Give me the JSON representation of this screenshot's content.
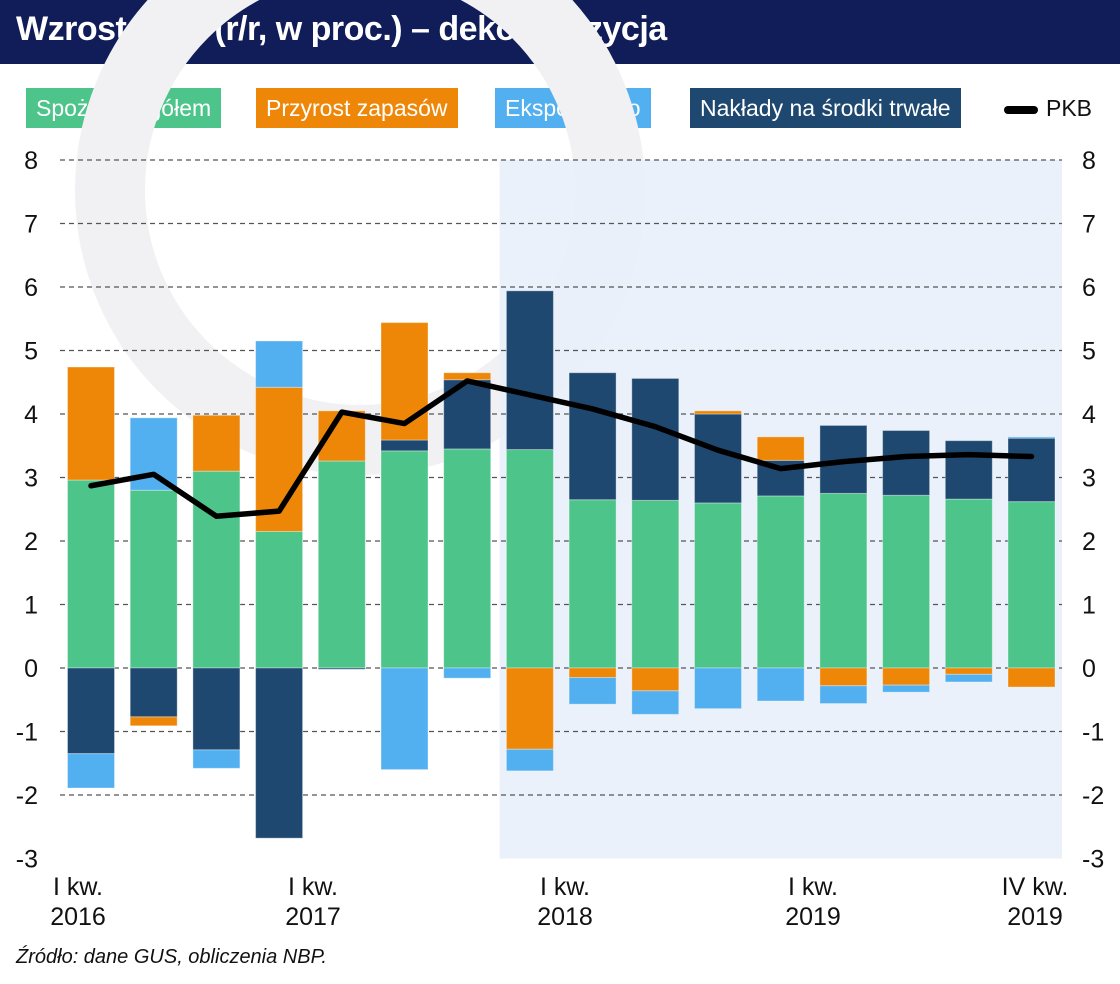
{
  "title": "Wzrost PKB (r/r, w proc.) – dekompozycja",
  "source": "Źródło: dane GUS, obliczenia NBP.",
  "colors": {
    "title_bar": "#111d58",
    "consumption": "#4cc48a",
    "inventories": "#ee8708",
    "net_exports": "#52aff0",
    "investment": "#1e4870",
    "gdp": "#000000",
    "forecast_shade": "#e8f0fa"
  },
  "legend": [
    {
      "key": "consumption",
      "label": "Spożycie ogółem"
    },
    {
      "key": "inventories",
      "label": "Przyrost zapasów"
    },
    {
      "key": "net_exports",
      "label": "Eksport netto"
    },
    {
      "key": "investment",
      "label": "Nakłady na środki trwałe"
    },
    {
      "key": "gdp",
      "label": "PKB"
    }
  ],
  "chart_data": {
    "type": "bar",
    "stacked": true,
    "ylim": [
      -3,
      8
    ],
    "y_ticks": [
      -3,
      -2,
      -1,
      0,
      1,
      2,
      3,
      4,
      5,
      6,
      7,
      8
    ],
    "y_tick_labels": [
      "-3",
      "-2",
      "-1",
      "0",
      "1",
      "2",
      "3",
      "4",
      "5",
      "6",
      "7",
      "8"
    ],
    "grid": "dashed horizontal",
    "legend_position": "top",
    "x_ticks": [
      {
        "index": 0,
        "line1": "I kw.",
        "line2": "2016"
      },
      {
        "index": 4,
        "line1": "I kw.",
        "line2": "2017"
      },
      {
        "index": 8,
        "line1": "I kw.",
        "line2": "2018"
      },
      {
        "index": 12,
        "line1": "I kw.",
        "line2": "2019"
      },
      {
        "index": 15,
        "line1": "IV kw.",
        "line2": "2019"
      }
    ],
    "shaded_from_index": 7,
    "series": [
      {
        "name": "Spożycie ogółem",
        "key": "consumption",
        "values": [
          2.96,
          2.8,
          3.1,
          2.15,
          3.26,
          3.42,
          3.45,
          3.44,
          2.65,
          2.64,
          2.6,
          2.71,
          2.75,
          2.72,
          2.66,
          2.62
        ]
      },
      {
        "name": "Nakłady na środki trwałe",
        "key": "investment",
        "values": [
          -1.35,
          -0.77,
          -1.29,
          -2.68,
          -0.02,
          0.17,
          1.09,
          2.5,
          2.0,
          1.92,
          1.4,
          0.56,
          1.07,
          1.02,
          0.92,
          1.0
        ]
      },
      {
        "name": "Przyrost zapasów",
        "key": "inventories",
        "values": [
          1.78,
          -0.14,
          0.88,
          2.27,
          0.79,
          1.85,
          0.11,
          -1.28,
          -0.15,
          -0.36,
          0.05,
          0.37,
          -0.28,
          -0.27,
          -0.1,
          -0.3
        ]
      },
      {
        "name": "Eksport netto",
        "key": "net_exports",
        "values": [
          -0.54,
          1.14,
          -0.29,
          0.73,
          0,
          -1.6,
          -0.16,
          -0.34,
          -0.42,
          -0.37,
          -0.64,
          -0.52,
          -0.28,
          -0.11,
          -0.12,
          0.02
        ]
      }
    ],
    "line": {
      "name": "PKB",
      "key": "gdp",
      "values": [
        2.87,
        3.05,
        2.39,
        2.47,
        4.03,
        3.85,
        4.52,
        4.3,
        4.08,
        3.8,
        3.43,
        3.14,
        3.25,
        3.33,
        3.36,
        3.33
      ]
    }
  }
}
